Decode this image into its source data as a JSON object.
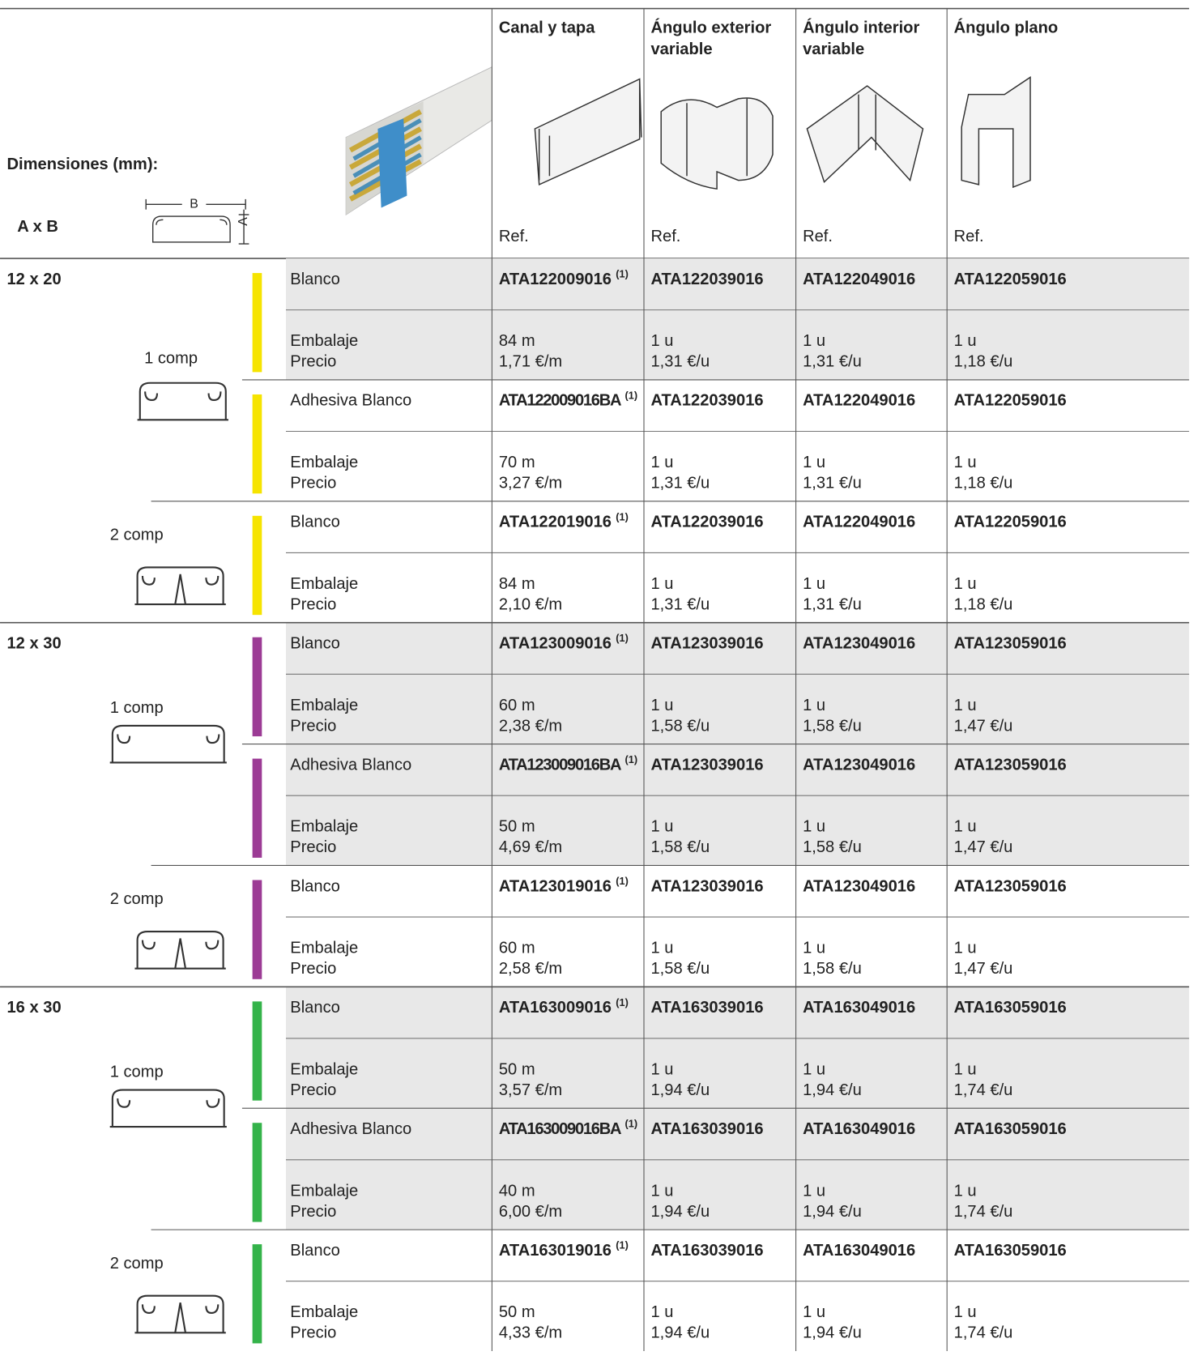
{
  "header": {
    "dims": "Dimensiones (mm):",
    "axb": "A x B",
    "dim_b": "B",
    "dim_a": "A",
    "columns": [
      {
        "title": [
          "Canal y tapa"
        ],
        "ref": "Ref."
      },
      {
        "title": [
          "Ángulo exterior",
          "variable"
        ],
        "ref": "Ref."
      },
      {
        "title": [
          "Ángulo interior",
          "variable"
        ],
        "ref": "Ref."
      },
      {
        "title": [
          "Ángulo plano"
        ],
        "ref": "Ref."
      }
    ]
  },
  "sizes": [
    {
      "size": "12 x 20",
      "color": "#f6e400",
      "comps": [
        {
          "label": "1 comp",
          "blocks": [
            {
              "label": "Blanco",
              "refs": [
                "ATA122009016",
                "ATA122039016",
                "ATA122049016",
                "ATA122059016"
              ],
              "note": "(1)",
              "packing_label": "Embalaje",
              "price_label": "Precio",
              "packing": [
                "84 m",
                "1 u",
                "1 u",
                "1 u"
              ],
              "price": [
                "1,71 €/m",
                "1,31 €/u",
                "1,31 €/u",
                "1,18 €/u"
              ]
            },
            {
              "label": "Adhesiva Blanco",
              "refs": [
                "ATA122009016BA",
                "ATA122039016",
                "ATA122049016",
                "ATA122059016"
              ],
              "note": "(1)",
              "packing_label": "Embalaje",
              "price_label": "Precio",
              "packing": [
                "70 m",
                "1 u",
                "1 u",
                "1 u"
              ],
              "price": [
                "3,27 €/m",
                "1,31 €/u",
                "1,31 €/u",
                "1,18 €/u"
              ]
            }
          ]
        },
        {
          "label": "2 comp",
          "blocks": [
            {
              "label": "Blanco",
              "refs": [
                "ATA122019016",
                "ATA122039016",
                "ATA122049016",
                "ATA122059016"
              ],
              "note": "(1)",
              "packing_label": "Embalaje",
              "price_label": "Precio",
              "packing": [
                "84 m",
                "1 u",
                "1 u",
                "1 u"
              ],
              "price": [
                "2,10 €/m",
                "1,31 €/u",
                "1,31 €/u",
                "1,18 €/u"
              ]
            }
          ]
        }
      ]
    },
    {
      "size": "12 x 30",
      "color": "#9c3b95",
      "comps": [
        {
          "label": "1 comp",
          "blocks": [
            {
              "label": "Blanco",
              "refs": [
                "ATA123009016",
                "ATA123039016",
                "ATA123049016",
                "ATA123059016"
              ],
              "note": "(1)",
              "packing_label": "Embalaje",
              "price_label": "Precio",
              "packing": [
                "60 m",
                "1 u",
                "1 u",
                "1 u"
              ],
              "price": [
                "2,38 €/m",
                "1,58 €/u",
                "1,58 €/u",
                "1,47 €/u"
              ]
            },
            {
              "label": "Adhesiva Blanco",
              "refs": [
                "ATA123009016BA",
                "ATA123039016",
                "ATA123049016",
                "ATA123059016"
              ],
              "note": "(1)",
              "packing_label": "Embalaje",
              "price_label": "Precio",
              "packing": [
                "50 m",
                "1 u",
                "1 u",
                "1 u"
              ],
              "price": [
                "4,69 €/m",
                "1,58 €/u",
                "1,58 €/u",
                "1,47 €/u"
              ]
            }
          ]
        },
        {
          "label": "2 comp",
          "blocks": [
            {
              "label": "Blanco",
              "refs": [
                "ATA123019016",
                "ATA123039016",
                "ATA123049016",
                "ATA123059016"
              ],
              "note": "(1)",
              "packing_label": "Embalaje",
              "price_label": "Precio",
              "packing": [
                "60 m",
                "1 u",
                "1 u",
                "1 u"
              ],
              "price": [
                "2,58 €/m",
                "1,58 €/u",
                "1,58 €/u",
                "1,47 €/u"
              ]
            }
          ]
        }
      ]
    },
    {
      "size": "16 x 30",
      "color": "#34b34a",
      "comps": [
        {
          "label": "1 comp",
          "blocks": [
            {
              "label": "Blanco",
              "refs": [
                "ATA163009016",
                "ATA163039016",
                "ATA163049016",
                "ATA163059016"
              ],
              "note": "(1)",
              "packing_label": "Embalaje",
              "price_label": "Precio",
              "packing": [
                "50 m",
                "1 u",
                "1 u",
                "1 u"
              ],
              "price": [
                "3,57 €/m",
                "1,94 €/u",
                "1,94 €/u",
                "1,74 €/u"
              ]
            },
            {
              "label": "Adhesiva Blanco",
              "refs": [
                "ATA163009016BA",
                "ATA163039016",
                "ATA163049016",
                "ATA163059016"
              ],
              "note": "(1)",
              "packing_label": "Embalaje",
              "price_label": "Precio",
              "packing": [
                "40 m",
                "1 u",
                "1 u",
                "1 u"
              ],
              "price": [
                "6,00 €/m",
                "1,94 €/u",
                "1,94 €/u",
                "1,74 €/u"
              ]
            }
          ]
        },
        {
          "label": "2 comp",
          "blocks": [
            {
              "label": "Blanco",
              "refs": [
                "ATA163019016",
                "ATA163039016",
                "ATA163049016",
                "ATA163059016"
              ],
              "note": "(1)",
              "packing_label": "Embalaje",
              "price_label": "Precio",
              "packing": [
                "50 m",
                "1 u",
                "1 u",
                "1 u"
              ],
              "price": [
                "4,33 €/m",
                "1,94 €/u",
                "1,94 €/u",
                "1,74 €/u"
              ]
            }
          ]
        }
      ]
    }
  ]
}
